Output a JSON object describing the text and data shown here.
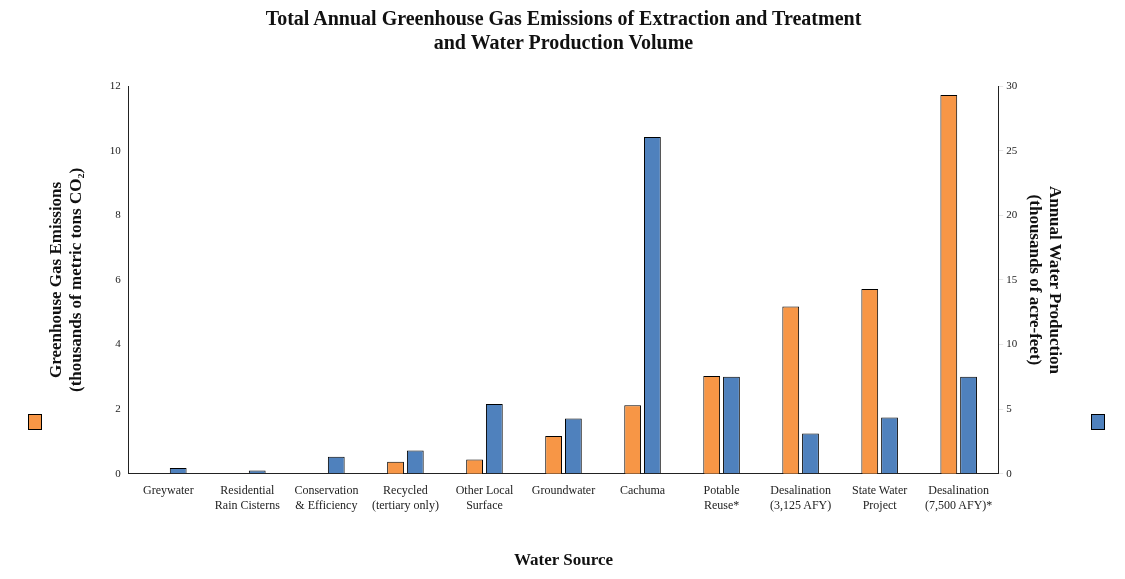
{
  "chart_data": {
    "type": "bar",
    "title": "Total Annual Greenhouse Gas Emissions of Extraction and Treatment\nand Water Production Volume",
    "xlabel": "Water Source",
    "ylabel": "Greenhouse Gas Emissions\n(thousands of metric tons CO₂)",
    "y2label": "Annual Water Production\n(thousands of acre-feet)",
    "categories": [
      "Greywater",
      "Residential\nRain Cisterns",
      "Conservation\n& Efficiency",
      "Recycled\n(tertiary only)",
      "Other Local\nSurface",
      "Groundwater",
      "Cachuma",
      "Potable\nReuse*",
      "Desalination\n(3,125 AFY)",
      "State Water\nProject",
      "Desalination\n(7,500 AFY)*"
    ],
    "series": [
      {
        "color": "#f79646",
        "values": [
          null,
          null,
          null,
          0.37,
          0.44,
          1.17,
          2.12,
          3.03,
          5.18,
          5.72,
          11.72
        ]
      },
      {
        "color": "#4f81bd",
        "axis": "y2",
        "values": [
          0.44,
          0.26,
          1.31,
          1.8,
          5.4,
          4.27,
          26.05,
          7.5,
          3.11,
          4.35,
          7.5
        ]
      }
    ],
    "ylim": [
      0,
      12
    ],
    "yticks": [
      0,
      2,
      4,
      6,
      8,
      10,
      12
    ],
    "y2lim": [
      0,
      30
    ],
    "y2ticks": [
      0,
      5,
      10,
      15,
      20,
      25,
      30
    ],
    "grid": false
  }
}
